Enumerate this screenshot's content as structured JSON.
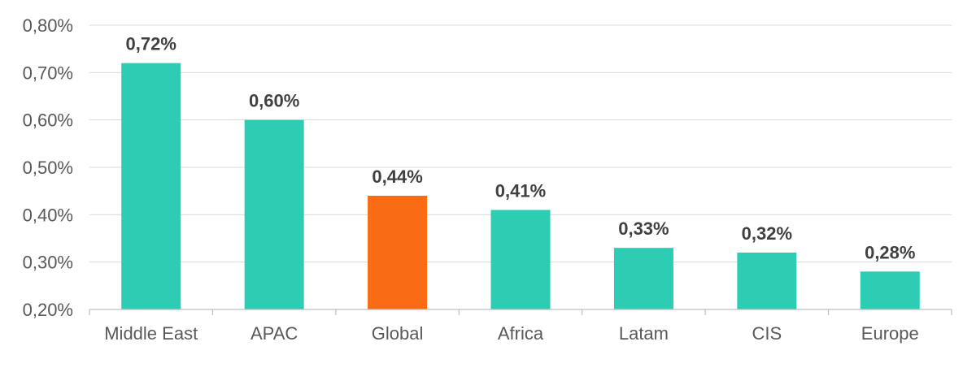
{
  "chart_data": {
    "type": "bar",
    "title": "",
    "xlabel": "",
    "ylabel": "",
    "categories": [
      "Middle East",
      "APAC",
      "Global",
      "Africa",
      "Latam",
      "CIS",
      "Europe"
    ],
    "values": [
      0.72,
      0.6,
      0.44,
      0.41,
      0.33,
      0.32,
      0.28
    ],
    "data_labels": [
      "0,72%",
      "0,60%",
      "0,44%",
      "0,41%",
      "0,33%",
      "0,32%",
      "0,28%"
    ],
    "ylim": [
      0.2,
      0.8
    ],
    "y_ticks": [
      0.2,
      0.3,
      0.4,
      0.5,
      0.6,
      0.7,
      0.8
    ],
    "y_tick_labels": [
      "0,20%",
      "0,30%",
      "0,40%",
      "0,50%",
      "0,60%",
      "0,70%",
      "0,80%"
    ],
    "grid": true,
    "legend": "none",
    "colors": {
      "default": "#2ccdb2",
      "highlight": "#f96b14",
      "highlight_category": "Global"
    }
  }
}
